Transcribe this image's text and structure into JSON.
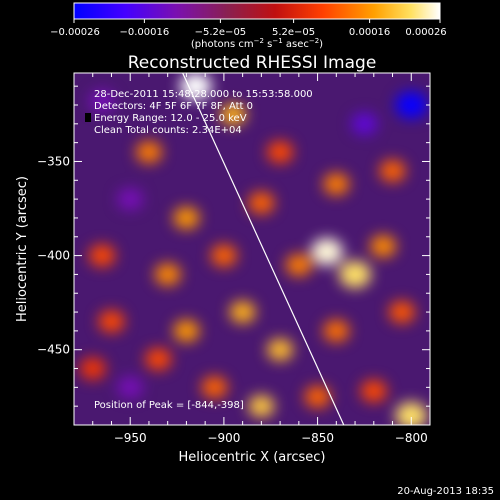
{
  "chart_data": {
    "type": "heatmap",
    "title": "Reconstructed RHESSI Image",
    "xlabel": "Heliocentric X (arcsec)",
    "ylabel": "Heliocentric Y (arcsec)",
    "x_range": [
      -980,
      -790
    ],
    "y_range": [
      -490,
      -303
    ],
    "x_ticks": [
      -950,
      -900,
      -850,
      -800
    ],
    "x_tick_labels": [
      "−950",
      "−900",
      "−850",
      "−800"
    ],
    "y_ticks": [
      -450,
      -400,
      -350
    ],
    "y_tick_labels": [
      "−450",
      "−400",
      "−350"
    ],
    "colorbar": {
      "min": -0.00026,
      "max": 0.00026,
      "tick_values": [
        -0.00026,
        -0.00016,
        -5.2e-05,
        5.2e-05,
        0.00016,
        0.00026
      ],
      "tick_labels": [
        "−0.00026",
        "−0.00016",
        "−5.2e−05",
        "5.2e−05",
        "0.00016",
        "0.00026"
      ],
      "unit_main": "(photons cm",
      "unit_exp1": "−2",
      "unit_mid": " s",
      "unit_exp2": "−1",
      "unit_end": " asec",
      "unit_exp3": "−2",
      "unit_close": ")",
      "colors": [
        "#0000ff",
        "#6a0aa0",
        "#8a1a5a",
        "#c01010",
        "#ff4000",
        "#ffa000",
        "#ffe060",
        "#ffffff"
      ]
    },
    "grid": false,
    "limb_line": {
      "points": [
        [
          -922,
          -303
        ],
        [
          -836,
          -490
        ]
      ]
    },
    "annotations": {
      "time": "28-Dec-2011 15:48:28.000 to 15:53:58.000",
      "detectors": "Detectors: 4F 5F 6F 7F 8F, Att 0",
      "energy": "Energy Range: 12.0 - 25.0 keV",
      "clean": "Clean     Total counts: 2.34E+04",
      "peak": "Position of Peak = [-844,-398]"
    },
    "blobs": [
      {
        "x": -915,
        "y": -310,
        "v": 0.00026
      },
      {
        "x": -895,
        "y": -325,
        "v": 0.00018
      },
      {
        "x": -800,
        "y": -320,
        "v": -0.00025
      },
      {
        "x": -825,
        "y": -330,
        "v": -0.00015
      },
      {
        "x": -965,
        "y": -318,
        "v": -0.00012
      },
      {
        "x": -940,
        "y": -345,
        "v": 0.00014
      },
      {
        "x": -870,
        "y": -345,
        "v": 0.0001
      },
      {
        "x": -950,
        "y": -370,
        "v": -0.00012
      },
      {
        "x": -920,
        "y": -380,
        "v": 0.00016
      },
      {
        "x": -880,
        "y": -372,
        "v": 0.00012
      },
      {
        "x": -840,
        "y": -362,
        "v": 0.00014
      },
      {
        "x": -810,
        "y": -355,
        "v": 0.00012
      },
      {
        "x": -965,
        "y": -400,
        "v": 0.0001
      },
      {
        "x": -930,
        "y": -410,
        "v": 0.00015
      },
      {
        "x": -900,
        "y": -400,
        "v": 0.00012
      },
      {
        "x": -860,
        "y": -405,
        "v": 0.00014
      },
      {
        "x": -845,
        "y": -398,
        "v": 0.00025
      },
      {
        "x": -830,
        "y": -410,
        "v": 0.00022
      },
      {
        "x": -815,
        "y": -395,
        "v": 0.00015
      },
      {
        "x": -960,
        "y": -435,
        "v": 0.0001
      },
      {
        "x": -920,
        "y": -440,
        "v": 0.00016
      },
      {
        "x": -890,
        "y": -430,
        "v": 0.00018
      },
      {
        "x": -870,
        "y": -450,
        "v": 0.00019
      },
      {
        "x": -840,
        "y": -440,
        "v": 0.00013
      },
      {
        "x": -805,
        "y": -430,
        "v": 0.00011
      },
      {
        "x": -950,
        "y": -470,
        "v": -0.00012
      },
      {
        "x": -905,
        "y": -470,
        "v": 0.00012
      },
      {
        "x": -880,
        "y": -480,
        "v": 0.0002
      },
      {
        "x": -850,
        "y": -475,
        "v": 0.00012
      },
      {
        "x": -820,
        "y": -472,
        "v": 0.0001
      },
      {
        "x": -800,
        "y": -485,
        "v": 0.00022
      },
      {
        "x": -970,
        "y": -460,
        "v": 8e-05
      },
      {
        "x": -935,
        "y": -455,
        "v": 0.0001
      }
    ]
  },
  "footer": {
    "timestamp": "20-Aug-2013 18:35"
  }
}
